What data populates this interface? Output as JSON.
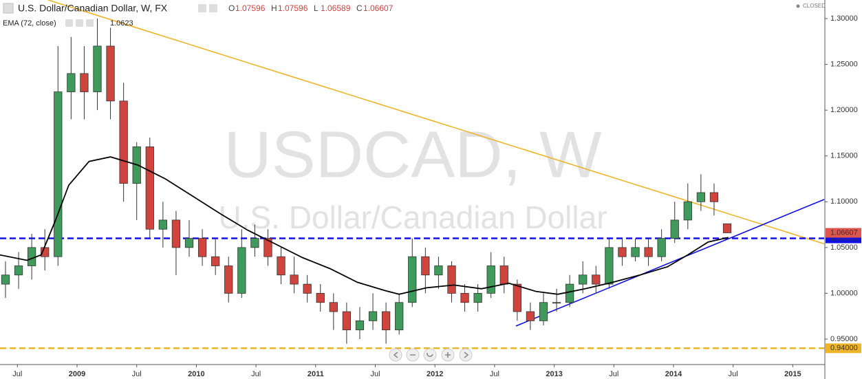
{
  "chart_data": {
    "type": "candlestick",
    "title": "U.S. Dollar/Canadian Dollar, W, FX",
    "watermark": "USDCAD, W",
    "watermark_subtitle": "U.S. Dollar/Canadian Dollar",
    "status": "CLOSED",
    "ohlc_legend": [
      {
        "label": "O",
        "value": 1.07596
      },
      {
        "label": "H",
        "value": 1.07596
      },
      {
        "label": "L",
        "value": 1.06589
      },
      {
        "label": "C",
        "value": 1.06607
      }
    ],
    "up_color": "#3f9a5c",
    "down_color": "#d0443e",
    "x": [
      2008.4,
      2008.51,
      2008.62,
      2008.73,
      2008.84,
      2008.95,
      2009.06,
      2009.17,
      2009.28,
      2009.39,
      2009.5,
      2009.61,
      2009.72,
      2009.83,
      2009.94,
      2010.05,
      2010.16,
      2010.27,
      2010.38,
      2010.49,
      2010.6,
      2010.71,
      2010.82,
      2010.93,
      2011.04,
      2011.15,
      2011.26,
      2011.37,
      2011.48,
      2011.59,
      2011.7,
      2011.81,
      2011.92,
      2012.03,
      2012.14,
      2012.25,
      2012.36,
      2012.47,
      2012.58,
      2012.69,
      2012.8,
      2012.91,
      2013.02,
      2013.13,
      2013.24,
      2013.35,
      2013.46,
      2013.57,
      2013.68,
      2013.79,
      2013.9,
      2014.01,
      2014.12,
      2014.23,
      2014.34,
      2014.45
    ],
    "open": [
      1.01,
      1.02,
      1.03,
      1.05,
      1.04,
      1.22,
      1.24,
      1.22,
      1.27,
      1.21,
      1.12,
      1.16,
      1.07,
      1.08,
      1.05,
      1.06,
      1.04,
      1.03,
      1.0,
      1.05,
      1.06,
      1.04,
      1.02,
      1.01,
      1.0,
      0.99,
      0.98,
      0.96,
      0.97,
      0.98,
      0.96,
      0.99,
      1.04,
      1.02,
      1.03,
      1.0,
      0.99,
      1.0,
      1.03,
      1.01,
      0.98,
      0.97,
      0.99,
      0.99,
      1.01,
      1.02,
      1.01,
      1.05,
      1.04,
      1.05,
      1.04,
      1.06,
      1.08,
      1.1,
      1.11,
      1.07596
    ],
    "high": [
      1.035,
      1.045,
      1.065,
      1.07,
      1.27,
      1.28,
      1.27,
      1.3,
      1.29,
      1.23,
      1.165,
      1.17,
      1.1,
      1.09,
      1.08,
      1.07,
      1.06,
      1.04,
      1.07,
      1.075,
      1.07,
      1.05,
      1.04,
      1.02,
      1.01,
      1.0,
      0.99,
      0.985,
      1.0,
      0.99,
      1.0,
      1.06,
      1.05,
      1.04,
      1.035,
      1.01,
      1.01,
      1.045,
      1.04,
      1.015,
      0.99,
      1.0,
      1.005,
      1.02,
      1.035,
      1.03,
      1.06,
      1.06,
      1.06,
      1.06,
      1.07,
      1.1,
      1.12,
      1.13,
      1.12,
      1.07596
    ],
    "low": [
      0.995,
      1.005,
      1.015,
      1.025,
      1.03,
      1.19,
      1.19,
      1.2,
      1.19,
      1.1,
      1.08,
      1.06,
      1.05,
      1.02,
      1.04,
      1.03,
      1.02,
      0.99,
      0.995,
      1.04,
      1.03,
      1.01,
      1.0,
      0.99,
      0.98,
      0.96,
      0.945,
      0.95,
      0.96,
      0.945,
      0.955,
      0.985,
      1.0,
      1.005,
      0.99,
      0.98,
      0.98,
      0.995,
      1.0,
      0.97,
      0.96,
      0.965,
      0.98,
      0.985,
      1.0,
      1.0,
      1.005,
      1.03,
      1.035,
      1.03,
      1.035,
      1.055,
      1.07,
      1.09,
      1.085,
      1.06589
    ],
    "close": [
      1.02,
      1.03,
      1.05,
      1.04,
      1.22,
      1.24,
      1.22,
      1.27,
      1.21,
      1.12,
      1.16,
      1.07,
      1.08,
      1.05,
      1.06,
      1.04,
      1.03,
      1.0,
      1.05,
      1.06,
      1.04,
      1.02,
      1.01,
      1.0,
      0.99,
      0.98,
      0.96,
      0.97,
      0.98,
      0.96,
      0.99,
      1.04,
      1.02,
      1.03,
      1.0,
      0.99,
      1.0,
      1.03,
      1.01,
      0.98,
      0.97,
      0.99,
      0.99,
      1.01,
      1.02,
      1.01,
      1.05,
      1.04,
      1.05,
      1.04,
      1.06,
      1.08,
      1.1,
      1.11,
      1.1,
      1.06607
    ],
    "indicator": {
      "name": "EMA (72, close)",
      "value": 1.0623,
      "color": "#000000",
      "x": [
        2008.35,
        2008.58,
        2008.7,
        2008.82,
        2008.93,
        2009.1,
        2009.28,
        2009.51,
        2009.74,
        2009.97,
        2010.2,
        2010.43,
        2010.66,
        2010.89,
        2011.12,
        2011.35,
        2011.58,
        2011.7,
        2011.93,
        2012.16,
        2012.39,
        2012.62,
        2012.85,
        2013.03,
        2013.26,
        2013.49,
        2013.72,
        2013.95,
        2014.12,
        2014.29,
        2014.46
      ],
      "values": [
        1.042,
        1.036,
        1.042,
        1.08,
        1.118,
        1.144,
        1.149,
        1.14,
        1.125,
        1.106,
        1.087,
        1.069,
        1.054,
        1.039,
        1.027,
        1.012,
        1.003,
        0.999,
        1.006,
        1.009,
        1.005,
        1.011,
        1.002,
        0.999,
        1.005,
        1.012,
        1.02,
        1.029,
        1.042,
        1.056,
        1.061
      ]
    },
    "trendlines": [
      {
        "color": "#f0b429",
        "x": [
          2008.758,
          2015.263
        ],
        "values": [
          1.3203,
          1.054
        ]
      },
      {
        "color": "#1010e0",
        "x": [
          2012.679,
          2015.263
        ],
        "values": [
          0.9643,
          1.1025
        ]
      }
    ],
    "hlines": [
      {
        "value": 1.06,
        "label": "1.06000",
        "color": "#1010e0"
      },
      {
        "value": 0.94,
        "label": "0.94000",
        "color": "#f0b429"
      }
    ],
    "last_price": {
      "value": 1.06607,
      "label": "1.06607",
      "color": "#e0564e"
    },
    "xlim": [
      2008.354,
      2015.263
    ],
    "ylim": [
      0.9222,
      1.3203
    ],
    "xticks": [
      {
        "value": 2008.5,
        "label": "Jul"
      },
      2009,
      {
        "value": 2009.5,
        "label": "Jul"
      },
      2010,
      {
        "value": 2010.5,
        "label": "Jul"
      },
      2011,
      {
        "value": 2011.5,
        "label": "Jul"
      },
      2012,
      {
        "value": 2012.5,
        "label": "Jul"
      },
      2013,
      {
        "value": 2013.5,
        "label": "Jul"
      },
      2014,
      {
        "value": 2014.5,
        "label": "Jul"
      },
      2015
    ],
    "yticks": [
      {
        "value": 0.95,
        "label": "0.95000"
      },
      {
        "value": 1.0,
        "label": "1.00000"
      },
      {
        "value": 1.05,
        "label": "1.05000"
      },
      {
        "value": 1.1,
        "label": "1.10000"
      },
      {
        "value": 1.15,
        "label": "1.15000"
      },
      {
        "value": 1.2,
        "label": "1.20000"
      },
      {
        "value": 1.25,
        "label": "1.25000"
      },
      {
        "value": 1.3,
        "label": "1.30000"
      }
    ]
  }
}
